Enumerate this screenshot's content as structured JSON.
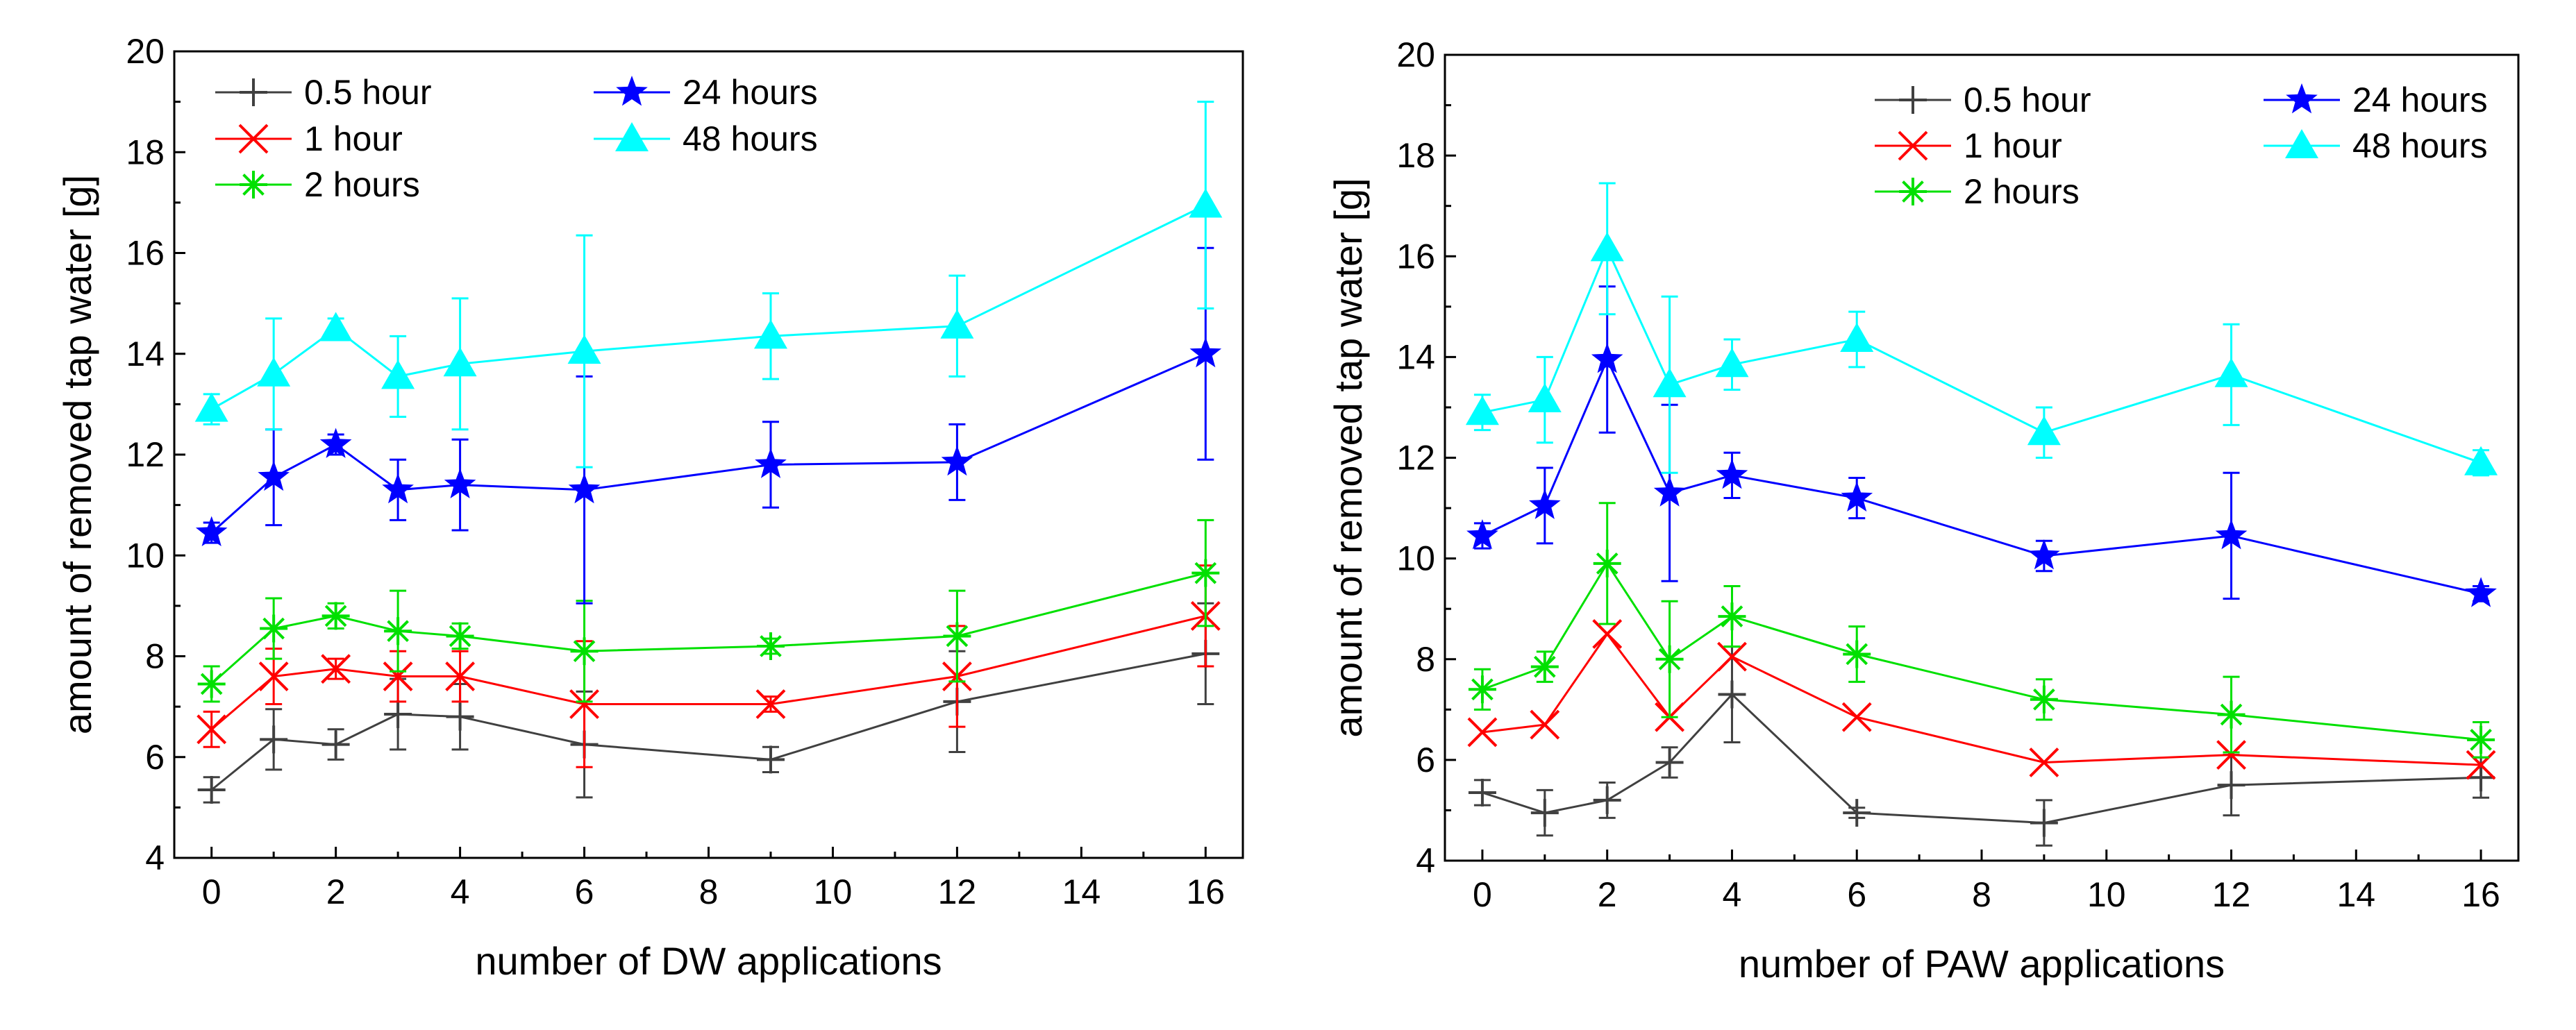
{
  "chart_data": [
    {
      "type": "line",
      "xlabel": "number of DW applications",
      "ylabel": "amount of removed tap water [g]",
      "xlim": [
        -0.6,
        16.6
      ],
      "ylim": [
        4,
        20
      ],
      "xticks": [
        "0",
        "2",
        "4",
        "6",
        "8",
        "10",
        "12",
        "14",
        "16"
      ],
      "yticks": [
        "4",
        "6",
        "8",
        "10",
        "12",
        "14",
        "16",
        "18",
        "20"
      ],
      "x": [
        0,
        1,
        2,
        3,
        4,
        6,
        9,
        12,
        16
      ],
      "legend_position": "top-left",
      "series": [
        {
          "name": "0.5 hour",
          "color": "#404040",
          "marker": "plus",
          "values": [
            5.35,
            6.35,
            6.25,
            6.85,
            6.8,
            6.25,
            5.95,
            7.1,
            8.05
          ],
          "errors": [
            0.25,
            0.6,
            0.3,
            0.7,
            0.65,
            1.05,
            0.25,
            1.0,
            1.0
          ]
        },
        {
          "name": "1 hour",
          "color": "#ff0000",
          "marker": "x",
          "values": [
            6.55,
            7.6,
            7.75,
            7.6,
            7.6,
            7.05,
            7.05,
            7.6,
            8.8
          ],
          "errors": [
            0.35,
            0.55,
            0.2,
            0.5,
            0.5,
            1.25,
            0.15,
            1.0,
            1.0
          ]
        },
        {
          "name": "2 hours",
          "color": "#00e000",
          "marker": "asterisk",
          "values": [
            7.45,
            8.55,
            8.8,
            8.5,
            8.4,
            8.1,
            8.2,
            8.4,
            9.65
          ],
          "errors": [
            0.35,
            0.6,
            0.25,
            0.8,
            0.25,
            1.0,
            0.15,
            0.9,
            1.05
          ]
        },
        {
          "name": "24 hours",
          "color": "#0000ff",
          "marker": "star",
          "values": [
            10.45,
            11.55,
            12.2,
            11.3,
            11.4,
            11.3,
            11.8,
            11.85,
            14.0
          ],
          "errors": [
            0.2,
            0.95,
            0.2,
            0.6,
            0.9,
            2.25,
            0.85,
            0.75,
            2.1
          ]
        },
        {
          "name": "48 hours",
          "color": "#00ffff",
          "marker": "triangle",
          "values": [
            12.9,
            13.6,
            14.5,
            13.55,
            13.8,
            14.05,
            14.35,
            14.55,
            16.95
          ],
          "errors": [
            0.3,
            1.1,
            0.2,
            0.8,
            1.3,
            2.3,
            0.85,
            1.0,
            2.05
          ]
        }
      ]
    },
    {
      "type": "line",
      "xlabel": "number of PAW applications",
      "ylabel": "amount of removed tap water [g]",
      "xlim": [
        -0.6,
        16.6
      ],
      "ylim": [
        4,
        20
      ],
      "xticks": [
        "0",
        "2",
        "4",
        "6",
        "8",
        "10",
        "12",
        "14",
        "16"
      ],
      "yticks": [
        "4",
        "6",
        "8",
        "10",
        "12",
        "14",
        "16",
        "18",
        "20"
      ],
      "x": [
        0,
        1,
        2,
        3,
        4,
        6,
        9,
        12,
        16
      ],
      "legend_position": "top-right",
      "series": [
        {
          "name": "0.5 hour",
          "color": "#404040",
          "marker": "plus",
          "values": [
            5.35,
            4.95,
            5.2,
            5.95,
            7.3,
            4.95,
            4.75,
            5.5,
            5.65
          ],
          "errors": [
            0.25,
            0.45,
            0.35,
            0.3,
            0.95,
            0.1,
            0.45,
            0.6,
            0.4
          ]
        },
        {
          "name": "1 hour",
          "color": "#ff0000",
          "marker": "x",
          "values": [
            6.55,
            6.7,
            8.5,
            6.85,
            8.05,
            6.85,
            5.95,
            6.1,
            5.9
          ]
        },
        {
          "name": "2 hours",
          "color": "#00e000",
          "marker": "asterisk",
          "values": [
            7.4,
            7.85,
            9.9,
            8.0,
            8.85,
            8.1,
            7.2,
            6.9,
            6.4
          ],
          "errors": [
            0.4,
            0.3,
            1.2,
            1.15,
            0.6,
            0.55,
            0.4,
            0.75,
            0.35
          ]
        },
        {
          "name": "24 hours",
          "color": "#0000ff",
          "marker": "star",
          "values": [
            10.45,
            11.05,
            13.95,
            11.3,
            11.65,
            11.2,
            10.05,
            10.45,
            9.3
          ],
          "errors": [
            0.25,
            0.75,
            1.45,
            1.75,
            0.45,
            0.4,
            0.3,
            1.25,
            0.15
          ]
        },
        {
          "name": "48 hours",
          "color": "#00ffff",
          "marker": "triangle",
          "values": [
            12.9,
            13.15,
            16.15,
            13.45,
            13.85,
            14.35,
            12.5,
            13.65,
            11.9
          ],
          "errors": [
            0.35,
            0.85,
            1.3,
            1.75,
            0.5,
            0.55,
            0.5,
            1.0,
            0.25
          ]
        }
      ]
    }
  ]
}
